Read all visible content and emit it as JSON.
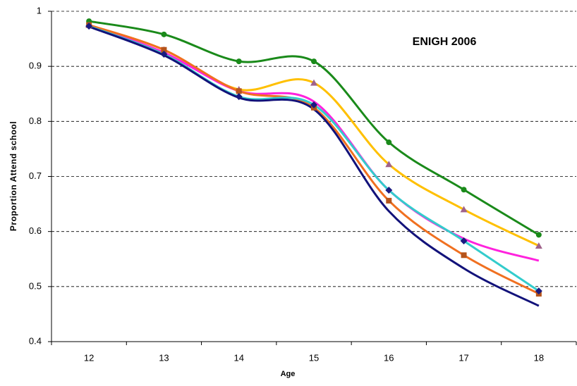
{
  "chart_data": {
    "type": "line",
    "title": "ENIGH 2006",
    "x_label": "Age",
    "y_label": "Proportion Attend school",
    "categories": [
      "12",
      "13",
      "14",
      "15",
      "16",
      "17",
      "18"
    ],
    "ylim": [
      0.4,
      1
    ],
    "yticks": [
      0.4,
      0.5,
      0.6,
      0.7,
      0.8,
      0.9,
      1
    ],
    "grid": true,
    "smooth": true,
    "series": [
      {
        "color": "#1a8a1a",
        "marker": "circle",
        "marker_color": "#1a8a1a",
        "values": [
          0.982,
          0.958,
          0.909,
          0.909,
          0.762,
          0.676,
          0.594
        ]
      },
      {
        "color": "#ffc000",
        "marker": "triangle",
        "marker_color": "#a0628a",
        "values": [
          0.975,
          0.93,
          0.858,
          0.87,
          0.722,
          0.64,
          0.574
        ]
      },
      {
        "color": "#ff22dd",
        "marker": "none",
        "values": [
          0.975,
          0.925,
          0.855,
          0.836,
          0.675,
          0.587,
          0.547
        ]
      },
      {
        "color": "#f07020",
        "marker": "square",
        "marker_color": "#b5541b",
        "values": [
          0.975,
          0.93,
          0.855,
          0.825,
          0.656,
          0.557,
          0.487
        ]
      },
      {
        "color": "#33cccc",
        "marker": "diamond",
        "marker_color": "#1a1a80",
        "values": [
          0.973,
          0.922,
          0.845,
          0.83,
          0.675,
          0.583,
          0.492
        ]
      },
      {
        "color": "#12127a",
        "marker": "none",
        "values": [
          0.972,
          0.92,
          0.843,
          0.822,
          0.637,
          0.533,
          0.465
        ]
      }
    ]
  }
}
